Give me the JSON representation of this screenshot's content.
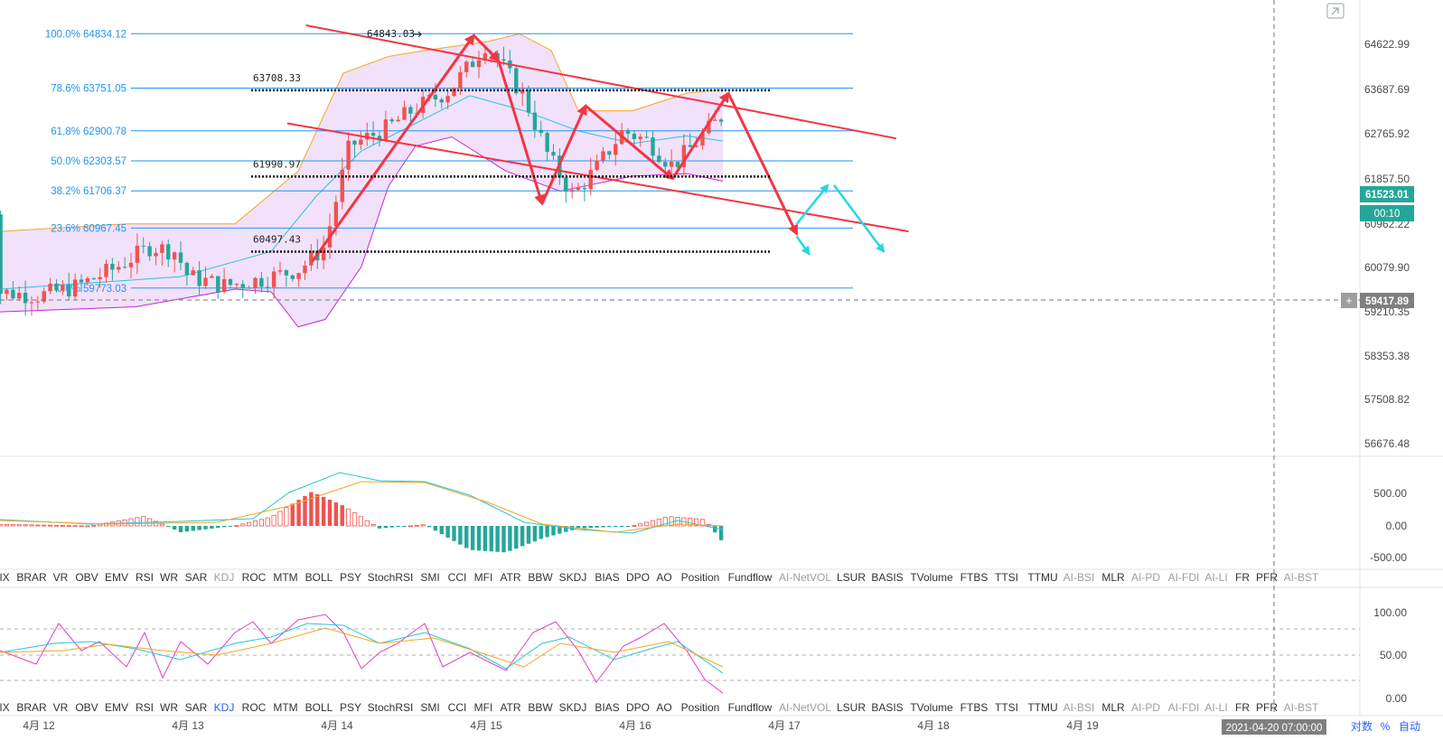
{
  "colors": {
    "up": "#ef5350",
    "down": "#26a69a",
    "fib_line": "#2196f3",
    "fib_text": "#2196f3",
    "boll_fill": "#e8c8f5",
    "boll_upper": "#f5a623",
    "boll_lower": "#c02bd6",
    "boll_mid": "#26c6da",
    "trend": "#f23645",
    "projection": "#26d7e0",
    "axis_text": "#4a4a4a",
    "price_tag": "#26a69a",
    "crosshair_tag": "#7f7f7f",
    "inactive_indicator": "#9e9e9e",
    "active_indicator": "#2962ff"
  },
  "price_axis": {
    "ticks": [
      "64622.99",
      "63687.69",
      "62765.92",
      "61857.50",
      "60962.22",
      "60079.90",
      "59210.35",
      "58353.38",
      "57508.82",
      "56676.48"
    ],
    "current_price": "61523.01",
    "countdown": "00:10",
    "crosshair_price": "59417.89",
    "crosshair_plus": "+"
  },
  "fib_levels": [
    {
      "label": "100.0% 64834.12",
      "price": 64834.12
    },
    {
      "label": "78.6% 63751.05",
      "price": 63751.05
    },
    {
      "label": "61.8% 62900.78",
      "price": 62900.78
    },
    {
      "label": "50.0% 62303.57",
      "price": 62303.57
    },
    {
      "label": "38.2% 61706.37",
      "price": 61706.37
    },
    {
      "label": "23.6% 60967.45",
      "price": 60967.45
    },
    {
      "label": "0.0% 59773.03",
      "price": 59773.03
    }
  ],
  "annotations": {
    "peak_label": "64843.03",
    "level_a": "63708.33",
    "level_b": "61990.97",
    "level_c": "60497.43"
  },
  "macd_axis": {
    "ticks": [
      "500.00",
      "0.00",
      "-500.00"
    ]
  },
  "kdj_axis": {
    "ticks": [
      "100.00",
      "50.00",
      "0.00"
    ]
  },
  "indicator_tabs": [
    "IX",
    "BRAR",
    "VR",
    "OBV",
    "EMV",
    "RSI",
    "WR",
    "SAR",
    "KDJ",
    "ROC",
    "MTM",
    "BOLL",
    "PSY",
    "StochRSI",
    "SMI",
    "CCI",
    "MFI",
    "ATR",
    "BBW",
    "SKDJ",
    "BIAS",
    "DPO",
    "AO",
    "Position",
    "Fundflow",
    "AI-NetVOL",
    "LSUR",
    "BASIS",
    "TVolume",
    "FTBS",
    "TTSI",
    "TTMU",
    "AI-BSI",
    "MLR",
    "AI-PD",
    "AI-FDI",
    "AI-LI",
    "FR",
    "PFR",
    "AI-BST"
  ],
  "time_axis": {
    "labels": [
      "4月 12",
      "4月 13",
      "4月 14",
      "4月 15",
      "4月 16",
      "4月 17",
      "4月 18",
      "4月 19"
    ],
    "crosshair_time": "2021-04-20 07:00:00",
    "scale_log": "对数",
    "scale_pct": "%",
    "scale_auto": "自动"
  },
  "chart_data": {
    "type": "candlestick",
    "instrument": "",
    "panes": [
      "price",
      "MACD",
      "KDJ"
    ],
    "price_range": [
      56200,
      65300
    ],
    "x_range": [
      "2021-04-11T17:00",
      "2021-04-20T07:00"
    ],
    "candle_interval_minutes": 60,
    "close_path": [
      [
        "2021-04-11T17:00",
        59700
      ],
      [
        "2021-04-12T00:00",
        59620
      ],
      [
        "2021-04-12T06:00",
        59800
      ],
      [
        "2021-04-12T12:00",
        60150
      ],
      [
        "2021-04-12T18:00",
        60600
      ],
      [
        "2021-04-12T22:00",
        60500
      ],
      [
        "2021-04-13T00:00",
        60000
      ],
      [
        "2021-04-13T06:00",
        59820
      ],
      [
        "2021-04-13T12:00",
        59950
      ],
      [
        "2021-04-13T18:00",
        60150
      ],
      [
        "2021-04-13T22:00",
        60600
      ],
      [
        "2021-04-14T02:00",
        62600
      ],
      [
        "2021-04-14T08:00",
        62950
      ],
      [
        "2021-04-14T12:00",
        63300
      ],
      [
        "2021-04-14T18:00",
        63700
      ],
      [
        "2021-04-14T22:00",
        64300
      ],
      [
        "2021-04-15T00:00",
        64650
      ],
      [
        "2021-04-15T06:00",
        63600
      ],
      [
        "2021-04-15T10:00",
        62400
      ],
      [
        "2021-04-15T14:00",
        61600
      ],
      [
        "2021-04-15T18:00",
        62200
      ],
      [
        "2021-04-15T22:00",
        62900
      ],
      [
        "2021-04-16T02:00",
        62700
      ],
      [
        "2021-04-16T06:00",
        62200
      ],
      [
        "2021-04-16T10:00",
        62700
      ],
      [
        "2021-04-16T14:00",
        63200
      ],
      [
        "2021-04-16T18:00",
        63500
      ],
      [
        "2021-04-16T22:00",
        63200
      ],
      [
        "2021-04-17T00:00",
        61400
      ]
    ],
    "bollinger": {
      "upper": [
        [
          0,
          60900
        ],
        [
          140,
          61050
        ],
        [
          260,
          61050
        ],
        [
          330,
          62100
        ],
        [
          380,
          64050
        ],
        [
          430,
          64380
        ],
        [
          470,
          64500
        ],
        [
          540,
          64680
        ],
        [
          575,
          64830
        ],
        [
          610,
          64500
        ],
        [
          640,
          63300
        ],
        [
          700,
          63300
        ],
        [
          760,
          63650
        ],
        [
          800,
          63720
        ]
      ],
      "middle": [
        [
          0,
          59750
        ],
        [
          200,
          60000
        ],
        [
          300,
          60500
        ],
        [
          350,
          61600
        ],
        [
          400,
          62500
        ],
        [
          460,
          63050
        ],
        [
          520,
          63600
        ],
        [
          580,
          63300
        ],
        [
          640,
          62900
        ],
        [
          700,
          62650
        ],
        [
          760,
          62800
        ],
        [
          800,
          62700
        ]
      ],
      "lower": [
        [
          0,
          59300
        ],
        [
          150,
          59400
        ],
        [
          260,
          59750
        ],
        [
          300,
          59700
        ],
        [
          330,
          59000
        ],
        [
          360,
          59150
        ],
        [
          400,
          60200
        ],
        [
          430,
          61800
        ],
        [
          460,
          62600
        ],
        [
          500,
          62780
        ],
        [
          560,
          62100
        ],
        [
          620,
          61700
        ],
        [
          700,
          62000
        ],
        [
          760,
          62050
        ],
        [
          800,
          61900
        ]
      ]
    },
    "trend_channel": {
      "upper": [
        [
          "2021-04-13T19:00",
          65000
        ],
        [
          "2021-04-17T18:00",
          62750
        ]
      ],
      "lower": [
        [
          "2021-04-13T16:00",
          63050
        ],
        [
          "2021-04-17T20:00",
          60900
        ]
      ]
    },
    "zigzag": [
      [
        "2021-04-13T20:00",
        60300
      ],
      [
        "2021-04-14T22:00",
        64800
      ],
      [
        "2021-04-15T02:00",
        64300
      ],
      [
        "2021-04-15T09:00",
        61450
      ],
      [
        "2021-04-15T16:00",
        63400
      ],
      [
        "2021-04-16T06:00",
        61950
      ],
      [
        "2021-04-16T15:00",
        63650
      ],
      [
        "2021-04-17T02:00",
        60850
      ]
    ],
    "projections": [
      {
        "from": [
          "2021-04-17T02:00",
          61050
        ],
        "to": [
          "2021-04-17T07:00",
          61820
        ]
      },
      {
        "from": [
          "2021-04-17T08:00",
          61820
        ],
        "to": [
          "2021-04-17T16:00",
          60500
        ]
      },
      {
        "from": [
          "2021-04-17T02:00",
          60800
        ],
        "to": [
          "2021-04-17T04:00",
          60450
        ]
      }
    ],
    "dotted_levels": [
      63708.33,
      61990.97,
      60497.43
    ],
    "macd": {
      "range": [
        -700,
        1050
      ],
      "dif_peak": 850,
      "dea_peak": 720,
      "hist_min": -420,
      "hist_max": 540
    },
    "kdj": {
      "range": [
        0,
        115
      ],
      "upper_band": 80,
      "mid_band": 50,
      "lower_band": 20
    }
  }
}
